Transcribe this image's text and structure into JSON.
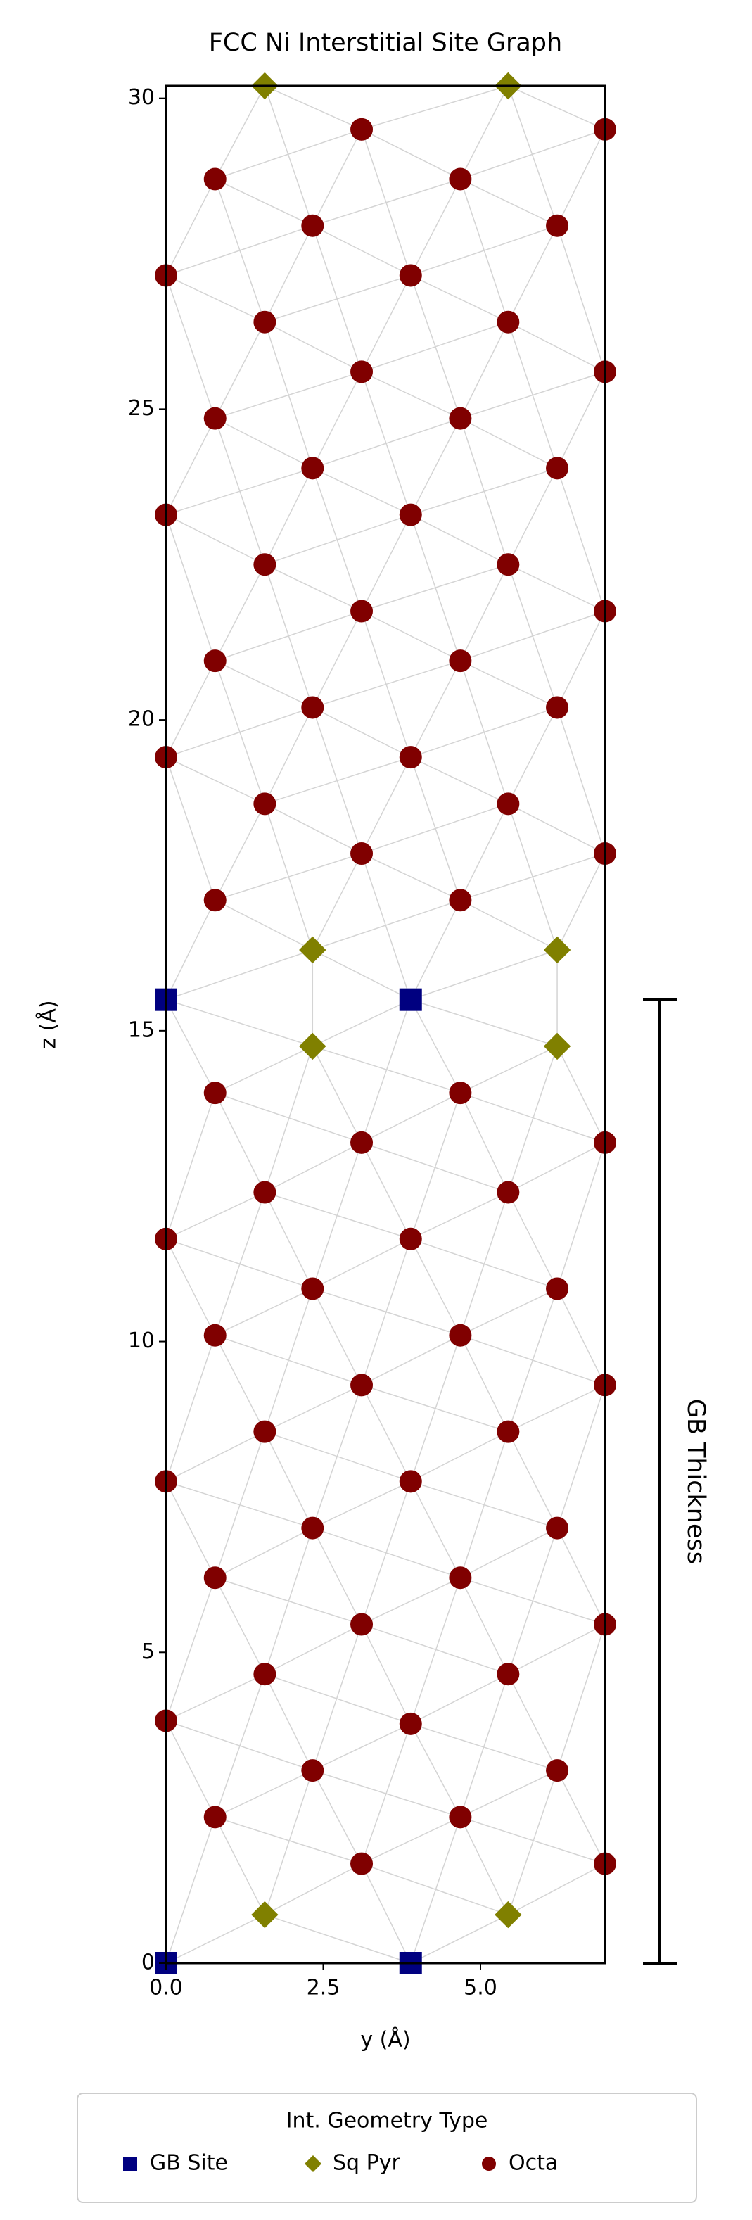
{
  "chart_data": {
    "type": "scatter",
    "title": "FCC Ni Interstitial Site Graph",
    "x_label": "y (Å)",
    "y_label": "z (Å)",
    "xlim": [
      0,
      6.98
    ],
    "ylim": [
      0,
      30.2
    ],
    "xticks": [
      {
        "value": 0,
        "label": "0.0"
      },
      2.5,
      {
        "value": 5,
        "label": "5.0"
      }
    ],
    "yticks": [
      0,
      5,
      10,
      15,
      20,
      25,
      30
    ],
    "legend_title": "Int. Geometry Type",
    "legend_position": "bottom",
    "annotation": {
      "label": "GB Thickness",
      "range": [
        0,
        15.5
      ]
    },
    "series": [
      {
        "name": "GB Site",
        "color": "#000080",
        "marker": "square",
        "x": [
          0,
          3.89,
          0,
          3.89
        ],
        "values": [
          0,
          0,
          15.5,
          15.5
        ]
      },
      {
        "name": "Sq Pyr",
        "color": "#808000",
        "marker": "diamond",
        "x": [
          1.57,
          5.44,
          2.33,
          6.22,
          2.33,
          6.22,
          1.57,
          5.44
        ],
        "values": [
          0.78,
          0.78,
          14.75,
          14.75,
          16.3,
          16.3,
          30.2,
          30.2
        ]
      },
      {
        "name": "Octa",
        "color": "#800000",
        "marker": "circle",
        "x": [
          0.78,
          3.11,
          4.68,
          6.98,
          0,
          2.33,
          3.89,
          6.22,
          1.57,
          5.44,
          3.11,
          6.98,
          0.78,
          4.68,
          2.33,
          6.22,
          0,
          3.89,
          1.57,
          5.44,
          3.11,
          6.98,
          0.78,
          4.68,
          2.33,
          6.22,
          0,
          3.89,
          1.57,
          5.44,
          3.11,
          6.98,
          0.78,
          4.68,
          0.78,
          4.68,
          3.11,
          6.98,
          1.57,
          5.44,
          0,
          3.89,
          2.33,
          6.22,
          0.78,
          4.68,
          3.11,
          6.98,
          1.57,
          5.44,
          0,
          3.89,
          2.33,
          6.22,
          0.78,
          4.68,
          3.11,
          6.98,
          1.57,
          5.44,
          0,
          3.89,
          2.33,
          6.22,
          0.78,
          4.68,
          3.11,
          6.98
        ],
        "values": [
          2.35,
          1.6,
          2.35,
          1.6,
          3.9,
          3.1,
          3.85,
          3.1,
          4.65,
          4.65,
          5.45,
          5.45,
          6.2,
          6.2,
          7.0,
          7.0,
          7.75,
          7.75,
          8.55,
          8.55,
          9.3,
          9.3,
          10.1,
          10.1,
          10.85,
          10.85,
          11.65,
          11.65,
          12.4,
          12.4,
          13.2,
          13.2,
          14.0,
          14.0,
          17.1,
          17.1,
          17.85,
          17.85,
          18.65,
          18.65,
          19.4,
          19.4,
          20.2,
          20.2,
          20.95,
          20.95,
          21.75,
          21.75,
          22.5,
          22.5,
          23.3,
          23.3,
          24.05,
          24.05,
          24.85,
          24.85,
          25.6,
          25.6,
          26.4,
          26.4,
          27.15,
          27.15,
          27.95,
          27.95,
          28.7,
          28.7,
          29.5,
          29.5
        ]
      }
    ]
  }
}
